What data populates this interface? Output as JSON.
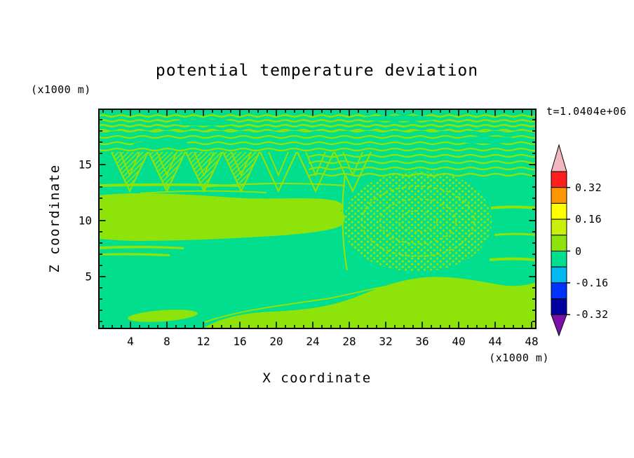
{
  "title": "potential temperature deviation",
  "timestamp": "t=1.0404e+06",
  "axes": {
    "x_label": "X coordinate",
    "x_units": "(x1000 m)",
    "x_ticks": [
      "4",
      "8",
      "12",
      "16",
      "20",
      "24",
      "28",
      "32",
      "36",
      "40",
      "44",
      "48"
    ],
    "y_label": "Z coordinate",
    "y_units": "(x1000 m)",
    "y_ticks": [
      "5",
      "10",
      "15"
    ]
  },
  "colorbar": {
    "tick_labels": [
      "0.32",
      "0.16",
      "0",
      "-0.16",
      "-0.32"
    ],
    "tick_values": [
      0.32,
      0.16,
      0,
      -0.16,
      -0.32
    ],
    "segment_colors": [
      "#FF1F1F",
      "#FF9500",
      "#FFFF00",
      "#C8F00A",
      "#8DE30A",
      "#00DE8E",
      "#00B9F0",
      "#0033FF",
      "#0000A0"
    ],
    "segment_ranges": [
      [
        0.32,
        0.4
      ],
      [
        0.24,
        0.32
      ],
      [
        0.16,
        0.24
      ],
      [
        0.08,
        0.16
      ],
      [
        0,
        0.08
      ],
      [
        -0.08,
        0
      ],
      [
        -0.16,
        -0.08
      ],
      [
        -0.24,
        -0.16
      ],
      [
        -0.32,
        -0.24
      ]
    ],
    "over_color": "#F2B6C0",
    "under_color": "#7B10A8"
  },
  "field_colors": {
    "positive": "#8DE30A",
    "negative": "#00DE8E"
  },
  "chart_data": {
    "type": "heatmap",
    "title": "potential temperature deviation",
    "xlabel": "X coordinate (x1000 m)",
    "ylabel": "Z coordinate (x1000 m)",
    "xlim": [
      0.5,
      48.5
    ],
    "ylim": [
      0,
      19.7
    ],
    "x_ticks": [
      4,
      8,
      12,
      16,
      20,
      24,
      28,
      32,
      36,
      40,
      44,
      48
    ],
    "y_ticks": [
      5,
      10,
      15
    ],
    "time_label": "t=1.0404e+06",
    "contour_levels": [
      -0.32,
      -0.24,
      -0.16,
      -0.08,
      0,
      0.08,
      0.16,
      0.24,
      0.32,
      0.4
    ],
    "legend_position": "right colorbar with over/under arrows",
    "grid": false,
    "field_description": "Filled contours of potential temperature deviation; nearly the entire domain lies between -0.08 and +0.08. Spring-green areas are slightly negative (-0.08 to 0); yellow-green areas are slightly positive (0 to +0.08).",
    "regions": [
      {
        "area": "thin wavy horizontal stripe band, z = 17.5-19.5, all x",
        "value_range": [
          0,
          0.08
        ]
      },
      {
        "area": "sawtooth wave train, z = 13-16, x = 2-27",
        "value_range": [
          0,
          0.08
        ]
      },
      {
        "area": "solid horizontal band, z = 8.5-12.5, x = 0-27",
        "value_range": [
          0,
          0.08
        ]
      },
      {
        "area": "mottled/stippled circulation cell, x = 27-43, z = 5-13",
        "value_range": [
          0,
          0.08
        ]
      },
      {
        "area": "bottom blob, z = 0-5, x = 12-48.5",
        "value_range": [
          0,
          0.08
        ]
      },
      {
        "area": "small lens near x = 3-9, z = 1-2",
        "value_range": [
          0,
          0.08
        ]
      },
      {
        "area": "remaining background",
        "value_range": [
          -0.08,
          0
        ]
      }
    ]
  }
}
